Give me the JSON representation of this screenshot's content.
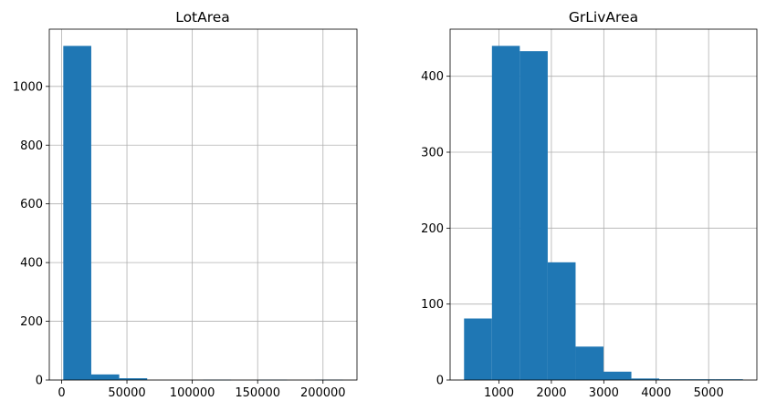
{
  "chart_data": [
    {
      "type": "bar",
      "title": "LotArea",
      "xlabel": "",
      "ylabel": "",
      "bins": [
        {
          "start": 1300,
          "end": 22700,
          "count": 1138
        },
        {
          "start": 22700,
          "end": 44100,
          "count": 19
        },
        {
          "start": 44100,
          "end": 65500,
          "count": 6
        },
        {
          "start": 65500,
          "end": 86900,
          "count": 0
        },
        {
          "start": 86900,
          "end": 108300,
          "count": 0
        },
        {
          "start": 108300,
          "end": 129700,
          "count": 1
        },
        {
          "start": 129700,
          "end": 151100,
          "count": 0
        },
        {
          "start": 151100,
          "end": 172500,
          "count": 1
        },
        {
          "start": 172500,
          "end": 193900,
          "count": 0
        },
        {
          "start": 193900,
          "end": 215300,
          "count": 1
        }
      ],
      "xlim": [
        -9400,
        226000
      ],
      "ylim": [
        0,
        1195
      ],
      "xticks": [
        0,
        50000,
        100000,
        150000,
        200000
      ],
      "xtick_labels": [
        "0",
        "50000",
        "100000",
        "150000",
        "200000"
      ],
      "yticks": [
        0,
        200,
        400,
        600,
        800,
        1000
      ],
      "ytick_labels": [
        "0",
        "200",
        "400",
        "600",
        "800",
        "1000"
      ],
      "grid": true,
      "bar_color": "#1f77b4"
    },
    {
      "type": "bar",
      "title": "GrLivArea",
      "xlabel": "",
      "ylabel": "",
      "bins": [
        {
          "start": 334,
          "end": 866,
          "count": 81
        },
        {
          "start": 866,
          "end": 1398,
          "count": 440
        },
        {
          "start": 1398,
          "end": 1930,
          "count": 433
        },
        {
          "start": 1930,
          "end": 2462,
          "count": 155
        },
        {
          "start": 2462,
          "end": 2994,
          "count": 44
        },
        {
          "start": 2994,
          "end": 3526,
          "count": 11
        },
        {
          "start": 3526,
          "end": 4058,
          "count": 2
        },
        {
          "start": 4058,
          "end": 4590,
          "count": 1
        },
        {
          "start": 4590,
          "end": 5122,
          "count": 1
        },
        {
          "start": 5122,
          "end": 5654,
          "count": 1
        }
      ],
      "xlim": [
        68,
        5920
      ],
      "ylim": [
        0,
        462
      ],
      "xticks": [
        1000,
        2000,
        3000,
        4000,
        5000
      ],
      "xtick_labels": [
        "1000",
        "2000",
        "3000",
        "4000",
        "5000"
      ],
      "yticks": [
        0,
        100,
        200,
        300,
        400
      ],
      "ytick_labels": [
        "0",
        "100",
        "200",
        "300",
        "400"
      ],
      "grid": true,
      "bar_color": "#1f77b4"
    }
  ]
}
